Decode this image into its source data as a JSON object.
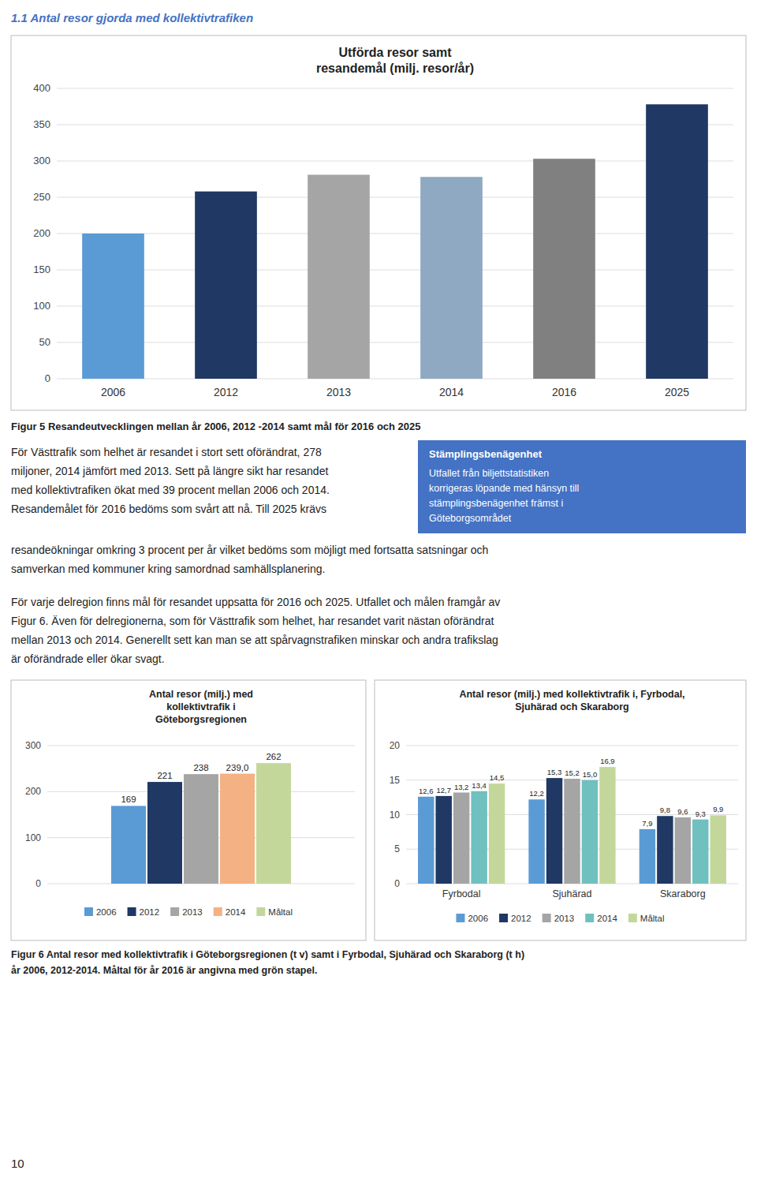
{
  "page_title": "1.1 Antal resor gjorda med kollektivtrafiken",
  "page_title_color": "#4472C4",
  "page_number": "10",
  "figure5_caption": "Figur 5 Resandeutvecklingen mellan år 2006, 2012 -2014 samt mål för 2016 och 2025",
  "body_text1_lines": [
    "För Västtrafik som helhet är resandet i stort sett oförändrat, 278",
    "miljoner, 2014 jämfört med 2013. Sett på längre sikt har resandet",
    "med kollektivtrafiken ökat med 39 procent mellan 2006 och 2014.",
    "Resandemålet för 2016 bedöms som svårt att nå. Till 2025 krävs"
  ],
  "sidebar": {
    "title": "Stämplingsbenägenhet",
    "lines": [
      "Utfallet från biljettstatistiken",
      "korrigeras löpande med hänsyn till",
      "stämplingsbenägenhet främst i",
      "Göteborgsområdet"
    ],
    "color": "#4472C4"
  },
  "body_text2_lines": [
    "resandeökningar omkring 3 procent per år vilket bedöms som möjligt med fortsatta satsningar och",
    "samverkan med kommuner kring samordnad samhällsplanering."
  ],
  "body_text3_lines": [
    "För varje delregion finns mål för resandet uppsatta för 2016 och 2025. Utfallet och målen framgår av",
    "Figur 6. Även för delregionerna, som för Västtrafik som helhet, har resandet varit nästan oförändrat",
    "mellan 2013 och 2014. Generellt sett kan man se att spårvagnstrafiken minskar och andra trafikslag",
    "är oförändrade eller ökar svagt."
  ],
  "figure6_caption_lines": [
    "Figur 6 Antal resor med kollektivtrafik i Göteborgsregionen (t v) samt i Fyrbodal, Sjuhärad och Skaraborg (t h)",
    "år 2006, 2012-2014. Måltal för år 2016 är angivna med grön stapel."
  ],
  "chart_data": [
    {
      "type": "bar",
      "title": "Utförda resor samt\nresandemål (milj. resor/år)",
      "categories": [
        "2006",
        "2012",
        "2013",
        "2014",
        "2016",
        "2025"
      ],
      "values": [
        200,
        258,
        281,
        278,
        303,
        378
      ],
      "colors": [
        "#5B9BD5",
        "#1F3864",
        "#A5A5A5",
        "#8EA9C1",
        "#808080",
        "#1F3864"
      ],
      "ylim": [
        0,
        400
      ],
      "yticks": [
        0,
        50,
        100,
        150,
        200,
        250,
        300,
        350,
        400
      ],
      "grid": true
    },
    {
      "type": "bar",
      "title": "Antal resor (milj.) med\nkollektivtrafik i\nGöteborgsregionen",
      "categories": [
        null
      ],
      "series": [
        {
          "name": "2006",
          "color": "#5B9BD5",
          "values": [
            169
          ]
        },
        {
          "name": "2012",
          "color": "#1F3864",
          "values": [
            221
          ]
        },
        {
          "name": "2013",
          "color": "#A5A5A5",
          "values": [
            238
          ]
        },
        {
          "name": "2014",
          "color": "#F4B183",
          "values": [
            239.0
          ],
          "value_labels": [
            "239,0"
          ]
        },
        {
          "name": "Måltal",
          "color": "#C4D79B",
          "values": [
            262
          ]
        }
      ],
      "ylim": [
        0,
        300
      ],
      "yticks": [
        0,
        100,
        200,
        300
      ],
      "grid": true,
      "legend": "bottom",
      "data_labels": true,
      "tick_labels": "y"
    },
    {
      "type": "bar",
      "title": "Antal resor (milj.) med kollektivtrafik i, Fyrbodal,\nSjuhärad och Skaraborg",
      "categories": [
        "Fyrbodal",
        "Sjuhärad",
        "Skaraborg"
      ],
      "series": [
        {
          "name": "2006",
          "color": "#5B9BD5",
          "values": [
            12.6,
            12.2,
            7.9
          ],
          "value_labels": [
            "12,6",
            "12,2",
            "7,9"
          ]
        },
        {
          "name": "2012",
          "color": "#1F3864",
          "values": [
            12.7,
            15.3,
            9.8
          ],
          "value_labels": [
            "12,7",
            "15,3",
            "9,8"
          ]
        },
        {
          "name": "2013",
          "color": "#A5A5A5",
          "values": [
            13.2,
            15.2,
            9.6
          ],
          "value_labels": [
            "13,2",
            "15,2",
            "9,6"
          ]
        },
        {
          "name": "2014",
          "color": "#70C0C0",
          "values": [
            13.4,
            15.0,
            9.3
          ],
          "value_labels": [
            "13,4",
            "15,0",
            "9,3"
          ]
        },
        {
          "name": "Måltal",
          "color": "#C4D79B",
          "values": [
            14.5,
            16.9,
            9.9
          ],
          "value_labels": [
            "14,5",
            "16,9",
            "9,9"
          ]
        }
      ],
      "ylim": [
        0,
        20
      ],
      "yticks": [
        0,
        5,
        10,
        15,
        20
      ],
      "grid": true,
      "legend": "bottom",
      "data_labels": true
    }
  ]
}
